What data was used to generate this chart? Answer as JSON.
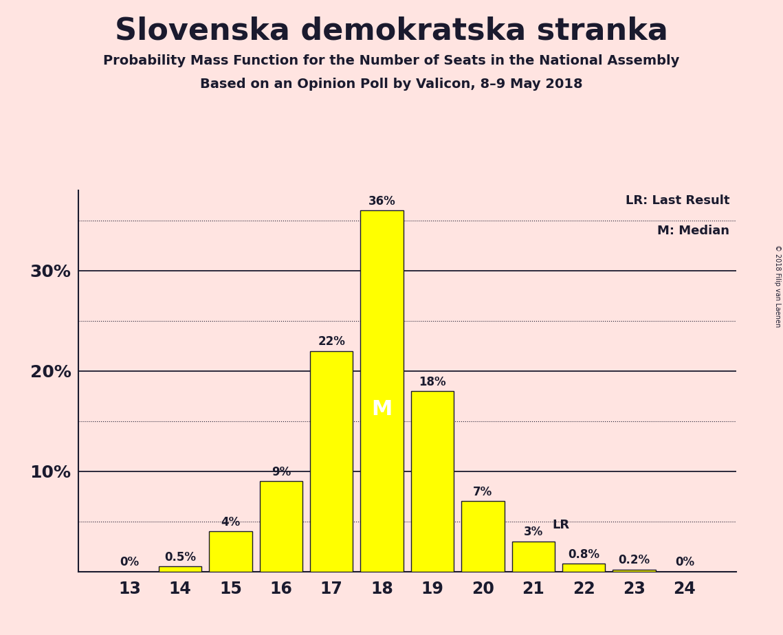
{
  "title": "Slovenska demokratska stranka",
  "subtitle1": "Probability Mass Function for the Number of Seats in the National Assembly",
  "subtitle2": "Based on an Opinion Poll by Valicon, 8–9 May 2018",
  "copyright": "© 2018 Filip van Laenen",
  "categories": [
    13,
    14,
    15,
    16,
    17,
    18,
    19,
    20,
    21,
    22,
    23,
    24
  ],
  "values": [
    0.0,
    0.5,
    4.0,
    9.0,
    22.0,
    36.0,
    18.0,
    7.0,
    3.0,
    0.8,
    0.2,
    0.0
  ],
  "labels": [
    "0%",
    "0.5%",
    "4%",
    "9%",
    "22%",
    "36%",
    "18%",
    "7%",
    "3%",
    "0.8%",
    "0.2%",
    "0%"
  ],
  "bar_color": "#FFFF00",
  "bar_edge_color": "#1a1a2e",
  "background_color": "#FFE4E1",
  "text_color": "#1a1a2e",
  "median_seat": 18,
  "median_label": "M",
  "lr_seat": 21,
  "lr_label": "LR",
  "ymajor_ticks": [
    10,
    20,
    30
  ],
  "ymajor_labels": [
    "10%",
    "20%",
    "30%"
  ],
  "ydotted_ticks": [
    5,
    15,
    25,
    35
  ],
  "ylim": [
    0,
    38
  ],
  "legend_lr": "LR: Last Result",
  "legend_m": "M: Median"
}
